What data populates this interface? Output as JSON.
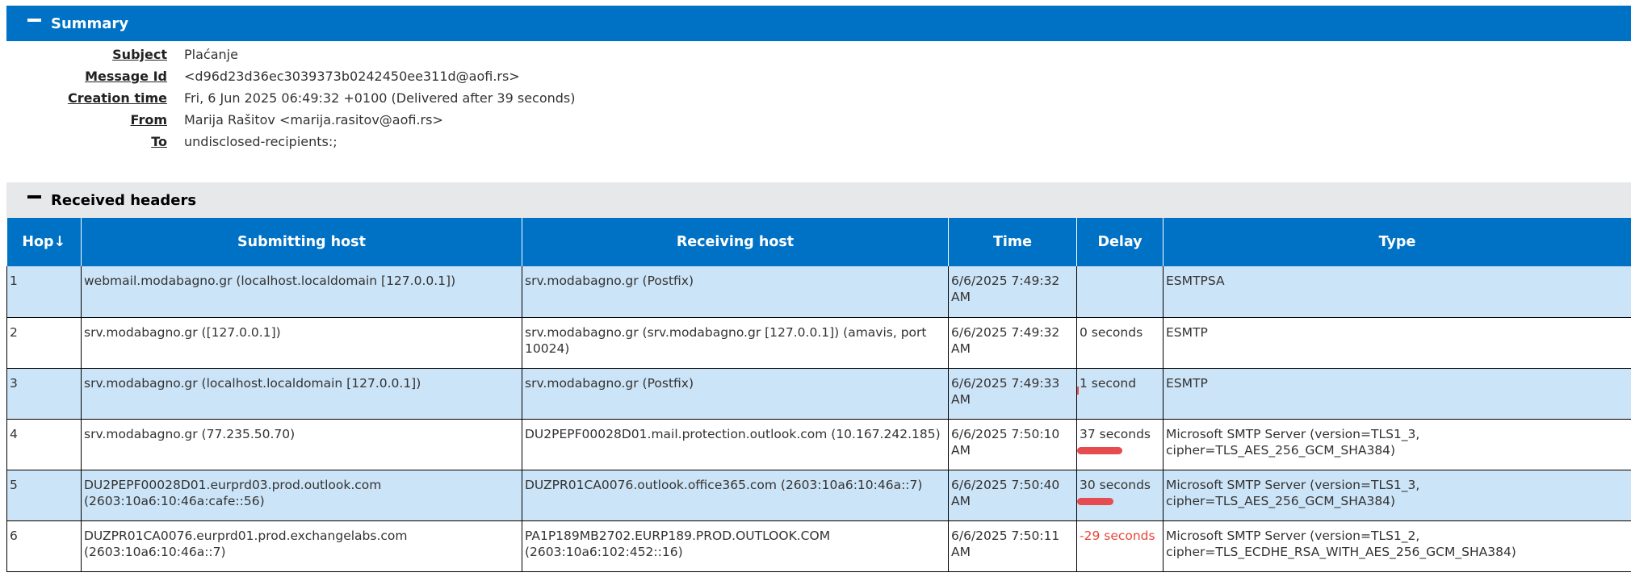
{
  "summary": {
    "title": "Summary",
    "fields": {
      "subject": {
        "label": "Subject",
        "value": "Plaćanje"
      },
      "message_id": {
        "label": "Message Id",
        "value": "<d96d23d36ec3039373b0242450ee311d@aofi.rs>"
      },
      "creation_time": {
        "label": "Creation time",
        "value": "Fri, 6 Jun 2025 06:49:32 +0100 (Delivered after 39 seconds)"
      },
      "from": {
        "label": "From",
        "value": "Marija Rašitov <marija.rasitov@aofi.rs>"
      },
      "to": {
        "label": "To",
        "value": "undisclosed-recipients:;"
      }
    }
  },
  "received": {
    "title": "Received headers",
    "columns": {
      "hop": "Hop↓",
      "submitting": "Submitting host",
      "receiving": "Receiving host",
      "time": "Time",
      "delay": "Delay",
      "type": "Type"
    },
    "rows": [
      {
        "hop": "1",
        "submitting": "webmail.modabagno.gr (localhost.localdomain [127.0.0.1])",
        "receiving": "srv.modabagno.gr (Postfix)",
        "time": "6/6/2025 7:49:32 AM",
        "delay": "",
        "delay_fraction": 0,
        "type": "ESMTPSA"
      },
      {
        "hop": "2",
        "submitting": "srv.modabagno.gr ([127.0.0.1])",
        "receiving": "srv.modabagno.gr (srv.modabagno.gr [127.0.0.1]) (amavis, port 10024)",
        "time": "6/6/2025 7:49:32 AM",
        "delay": "0 seconds",
        "delay_fraction": 0,
        "type": "ESMTP"
      },
      {
        "hop": "3",
        "submitting": "srv.modabagno.gr (localhost.localdomain [127.0.0.1])",
        "receiving": "srv.modabagno.gr (Postfix)",
        "time": "6/6/2025 7:49:33 AM",
        "delay": "1 second",
        "delay_fraction": 0.027,
        "type": "ESMTP"
      },
      {
        "hop": "4",
        "submitting": "srv.modabagno.gr (77.235.50.70)",
        "receiving": "DU2PEPF00028D01.mail.protection.outlook.com (10.167.242.185)",
        "time": "6/6/2025 7:50:10 AM",
        "delay": "37 seconds",
        "delay_fraction": 1.0,
        "type": "Microsoft SMTP Server (version=TLS1_3, cipher=TLS_AES_256_GCM_SHA384)"
      },
      {
        "hop": "5",
        "submitting": "DU2PEPF00028D01.eurprd03.prod.outlook.com (2603:10a6:10:46a:cafe::56)",
        "receiving": "DUZPR01CA0076.outlook.office365.com (2603:10a6:10:46a::7)",
        "time": "6/6/2025 7:50:40 AM",
        "delay": "30 seconds",
        "delay_fraction": 0.81,
        "type": "Microsoft SMTP Server (version=TLS1_3, cipher=TLS_AES_256_GCM_SHA384)"
      },
      {
        "hop": "6",
        "submitting": "DUZPR01CA0076.eurprd01.prod.exchangelabs.com (2603:10a6:10:46a::7)",
        "receiving": "PA1P189MB2702.EURP189.PROD.OUTLOOK.COM (2603:10a6:102:452::16)",
        "time": "6/6/2025 7:50:11 AM",
        "delay": "-29 seconds",
        "delay_fraction": 0,
        "type": "Microsoft SMTP Server (version=TLS1_2, cipher=TLS_ECDHE_RSA_WITH_AES_256_GCM_SHA384)"
      }
    ]
  },
  "colors": {
    "accent": "#0072c6",
    "row_highlight": "#cce4f7",
    "delay_bar": "#e54b4f",
    "negative_delay": "#e8463a"
  }
}
